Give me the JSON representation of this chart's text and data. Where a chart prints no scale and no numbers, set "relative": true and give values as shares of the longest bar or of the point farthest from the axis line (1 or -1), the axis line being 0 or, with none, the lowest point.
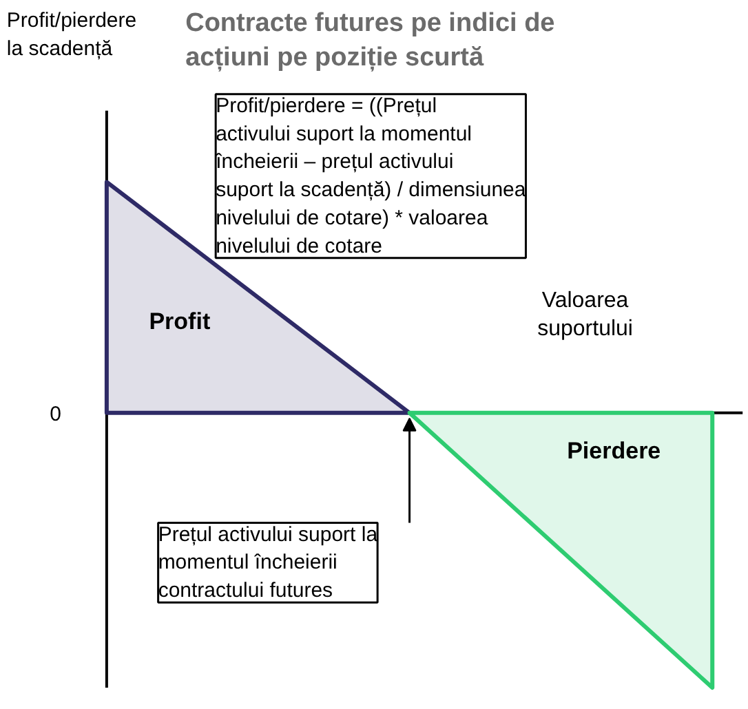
{
  "chart_data": {
    "type": "area",
    "relative": true,
    "title": "Contracte futures pe indici de acțiuni pe poziție scurtă",
    "xlabel": "Valoarea suportului",
    "categories": [
      null,
      null,
      null
    ],
    "series": [
      {
        "color": "#2e2a66",
        "values": [
          0.84,
          0,
          null
        ]
      },
      {
        "color": "#2ecc71",
        "values": [
          null,
          0,
          -1
        ]
      }
    ],
    "annotations": [
      "Profit/pierdere = ((Prețul activului suport la momentul încheierii – prețul activului suport la scadență) / dimensiunea nivelului de cotare) * valoarea nivelului de cotare",
      "Profit",
      "Pierdere",
      "0",
      "Prețul activului suport la momentul încheierii contractului futures",
      "Profit/pierdere la scadență"
    ]
  }
}
